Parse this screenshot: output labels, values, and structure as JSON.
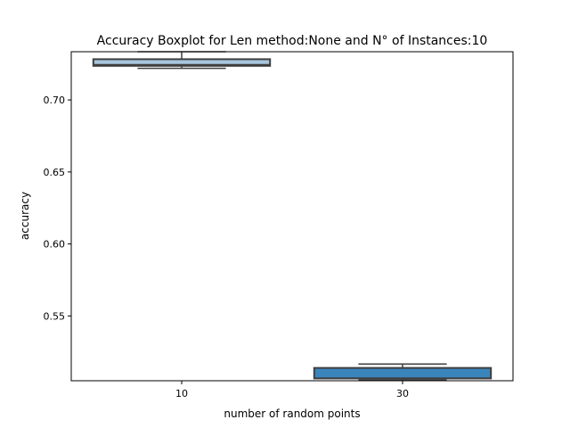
{
  "chart_data": {
    "type": "boxplot",
    "title": "Accuracy Boxplot for Len method:None and N° of Instances:10",
    "xlabel": "number of random points",
    "ylabel": "accuracy",
    "categories": [
      "10",
      "30"
    ],
    "yticks": [
      "0.55",
      "0.60",
      "0.65",
      "0.70"
    ],
    "ytick_values": [
      0.55,
      0.6,
      0.65,
      0.7
    ],
    "ylim": [
      0.505,
      0.7335
    ],
    "grid": false,
    "legend": "none",
    "boxes": [
      {
        "category": "10",
        "whisker_low": 0.722,
        "q1": 0.7237,
        "median": 0.7245,
        "q3": 0.7283,
        "whisker_high": 0.7335,
        "color": "#a6c6de"
      },
      {
        "category": "30",
        "whisker_low": 0.5055,
        "q1": 0.5066,
        "median": 0.5068,
        "q3": 0.5139,
        "whisker_high": 0.5166,
        "color": "#3a85bc"
      }
    ]
  }
}
